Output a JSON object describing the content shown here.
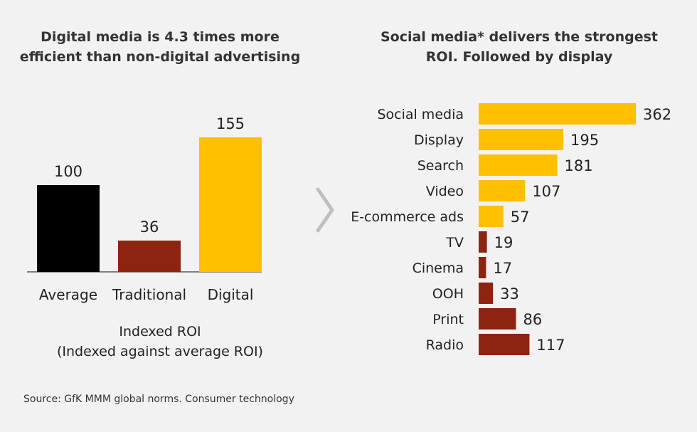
{
  "colors": {
    "black": "#000000",
    "brown": "#8b2510",
    "gold": "#ffc000",
    "axis": "#7f7f7f",
    "chevron": "#bfbfbf"
  },
  "left": {
    "title_line1": "Digital media is 4.3 times more",
    "title_line2": "efficient than non-digital advertising",
    "xlabel_line1": "Indexed ROI",
    "xlabel_line2": "(Indexed against average ROI)"
  },
  "right": {
    "title_line1": "Social media* delivers the strongest",
    "title_line2": "ROI. Followed by display"
  },
  "source": "Source:  GfK MMM global norms. Consumer technology",
  "chart_data": [
    {
      "type": "bar",
      "orientation": "vertical",
      "title": "Digital media is 4.3 times more efficient than non-digital advertising",
      "xlabel": "Indexed ROI (Indexed against average ROI)",
      "categories": [
        "Average",
        "Traditional",
        "Digital"
      ],
      "values": [
        100,
        36,
        155
      ],
      "bar_colors": [
        "black",
        "brown",
        "gold"
      ],
      "ylim": [
        0,
        160
      ],
      "grid": false
    },
    {
      "type": "bar",
      "orientation": "horizontal",
      "title": "Social media* delivers the strongest ROI. Followed by display",
      "categories": [
        "Social media",
        "Display",
        "Search",
        "Video",
        "E-commerce ads",
        "TV",
        "Cinema",
        "OOH",
        "Print",
        "Radio"
      ],
      "values": [
        362,
        195,
        181,
        107,
        57,
        19,
        17,
        33,
        86,
        117
      ],
      "bar_colors": [
        "gold",
        "gold",
        "gold",
        "gold",
        "gold",
        "brown",
        "brown",
        "brown",
        "brown",
        "brown"
      ],
      "xlim": [
        0,
        370
      ],
      "grid": false
    }
  ]
}
